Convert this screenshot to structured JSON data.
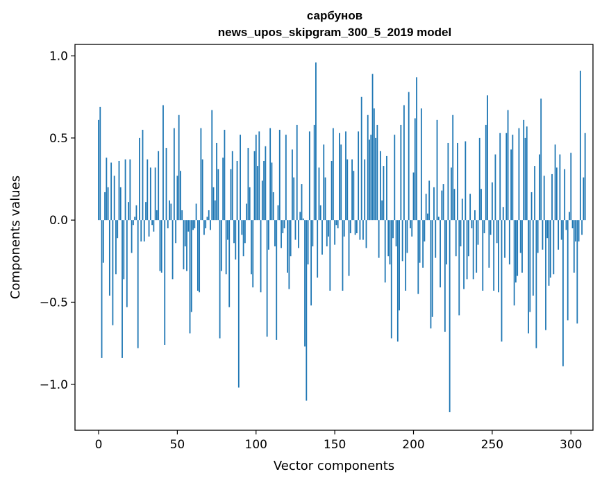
{
  "chart_data": {
    "type": "bar",
    "title": "сарбунов",
    "subtitle": "news_upos_skipgram_300_5_2019 model",
    "xlabel": "Vector components",
    "ylabel": "Components values",
    "xlim": [
      -15,
      314
    ],
    "ylim": [
      -1.28,
      1.07
    ],
    "xticks": [
      0,
      50,
      100,
      150,
      200,
      250,
      300
    ],
    "yticks": [
      1.0,
      0.5,
      0.0,
      -0.5,
      -1.0
    ],
    "ytick_labels": [
      "1.0",
      "0.5",
      "0.0",
      "−0.5",
      "−1.0"
    ],
    "bar_color": "#1f77b4",
    "grid": false,
    "values": [
      0.61,
      0.69,
      -0.84,
      -0.26,
      0.17,
      0.38,
      0.2,
      -0.46,
      0.35,
      -0.64,
      0.27,
      -0.33,
      -0.11,
      0.36,
      0.2,
      -0.84,
      -0.36,
      0.37,
      -0.53,
      0.11,
      0.37,
      -0.2,
      -0.03,
      0.02,
      0.09,
      -0.78,
      0.5,
      -0.13,
      0.55,
      -0.13,
      0.11,
      0.37,
      -0.1,
      0.32,
      -0.03,
      -0.07,
      0.32,
      0.06,
      0.42,
      -0.31,
      -0.32,
      0.7,
      -0.76,
      0.44,
      -0.05,
      0.12,
      0.1,
      -0.36,
      0.56,
      -0.14,
      0.27,
      0.64,
      0.3,
      0.06,
      -0.3,
      -0.16,
      -0.31,
      -0.07,
      -0.69,
      -0.56,
      -0.06,
      -0.05,
      0.1,
      -0.43,
      -0.44,
      0.56,
      0.37,
      -0.09,
      -0.05,
      0.02,
      0.06,
      -0.06,
      0.67,
      0.2,
      0.12,
      0.47,
      0.31,
      -0.72,
      -0.31,
      0.38,
      0.55,
      -0.33,
      -0.12,
      -0.53,
      0.31,
      0.42,
      -0.14,
      -0.24,
      0.36,
      -1.02,
      0.52,
      -0.09,
      -0.22,
      -0.14,
      0.1,
      0.44,
      0.2,
      -0.33,
      -0.41,
      0.42,
      0.52,
      0.33,
      0.54,
      -0.44,
      0.24,
      0.36,
      0.45,
      -0.71,
      -0.18,
      0.56,
      0.35,
      0.17,
      -0.16,
      -0.73,
      0.09,
      0.55,
      -0.17,
      -0.08,
      -0.05,
      0.52,
      -0.32,
      -0.42,
      -0.22,
      0.43,
      0.26,
      -0.12,
      0.58,
      -0.17,
      0.05,
      0.22,
      0.01,
      -0.77,
      -1.1,
      -0.27,
      0.54,
      -0.52,
      -0.16,
      0.58,
      0.96,
      -0.35,
      0.32,
      0.09,
      -0.21,
      0.46,
      0.26,
      -0.16,
      -0.1,
      -0.43,
      0.36,
      0.56,
      -0.15,
      -0.03,
      -0.05,
      0.53,
      0.46,
      -0.43,
      -0.1,
      0.54,
      0.37,
      -0.34,
      -0.08,
      0.37,
      0.3,
      -0.09,
      -0.08,
      0.54,
      -0.12,
      0.75,
      -0.12,
      0.37,
      -0.17,
      0.64,
      0.49,
      0.52,
      0.89,
      0.68,
      0.5,
      0.58,
      -0.23,
      0.42,
      0.12,
      0.33,
      -0.38,
      0.39,
      -0.22,
      -0.27,
      -0.72,
      -0.11,
      0.52,
      -0.16,
      -0.74,
      -0.55,
      0.58,
      -0.25,
      0.7,
      -0.43,
      -0.2,
      0.78,
      -0.05,
      -0.1,
      0.29,
      0.62,
      0.87,
      -0.45,
      -0.26,
      0.68,
      -0.29,
      -0.13,
      0.16,
      0.04,
      0.24,
      -0.66,
      -0.59,
      0.2,
      -0.23,
      0.61,
      0.02,
      -0.41,
      0.18,
      0.22,
      -0.68,
      -0.27,
      0.47,
      -1.17,
      0.32,
      0.64,
      0.19,
      -0.22,
      0.47,
      -0.58,
      -0.16,
      0.13,
      -0.42,
      0.48,
      -0.36,
      -0.22,
      0.16,
      -0.05,
      -0.36,
      0.06,
      -0.32,
      -0.15,
      0.5,
      0.19,
      -0.43,
      -0.08,
      0.58,
      0.76,
      -0.29,
      -0.09,
      0.23,
      -0.43,
      0.4,
      -0.14,
      -0.44,
      0.53,
      -0.74,
      0.08,
      -0.23,
      0.53,
      0.67,
      -0.27,
      0.43,
      0.52,
      -0.52,
      -0.38,
      -0.34,
      0.56,
      -0.2,
      -0.32,
      0.61,
      0.5,
      0.57,
      -0.69,
      -0.56,
      0.17,
      -0.46,
      0.33,
      -0.78,
      -0.2,
      0.4,
      0.74,
      -0.18,
      0.27,
      -0.67,
      -0.11,
      -0.4,
      -0.35,
      0.28,
      -0.33,
      0.46,
      0.32,
      -0.18,
      0.4,
      -0.12,
      -0.89,
      0.31,
      -0.06,
      -0.61,
      0.05,
      0.41,
      -0.05,
      -0.32,
      -0.13,
      -0.63,
      -0.13,
      0.91,
      -0.09,
      0.26,
      0.53
    ]
  }
}
